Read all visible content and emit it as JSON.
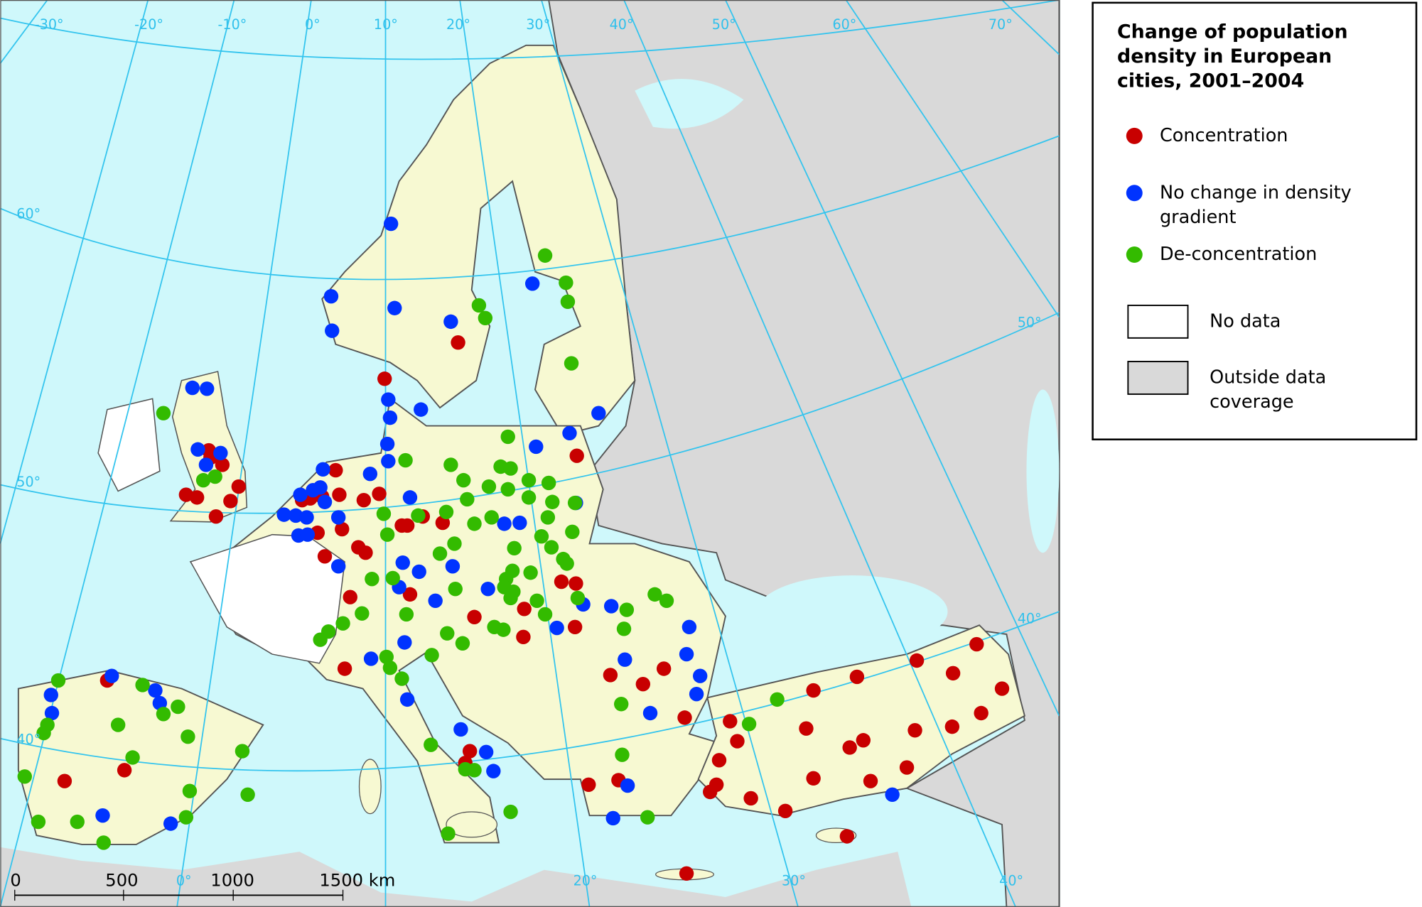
{
  "map": {
    "legend": {
      "title": "Change of population density in European cities, 2001–2004",
      "items": [
        "Concentration",
        "No change in density gradient",
        "De-concentration",
        "No data",
        "Outside data coverage"
      ]
    },
    "graticule_labels": [
      "-30°",
      "-20°",
      "-10°",
      "0°",
      "10°",
      "20°",
      "30°",
      "40°",
      "50°",
      "60°",
      "70°",
      "60°",
      "50°",
      "40°",
      "50°",
      "40°",
      "0°",
      "20°",
      "30°",
      "40°"
    ],
    "scale_bar": [
      "0",
      "500",
      "1000",
      "1500 km"
    ]
  }
}
